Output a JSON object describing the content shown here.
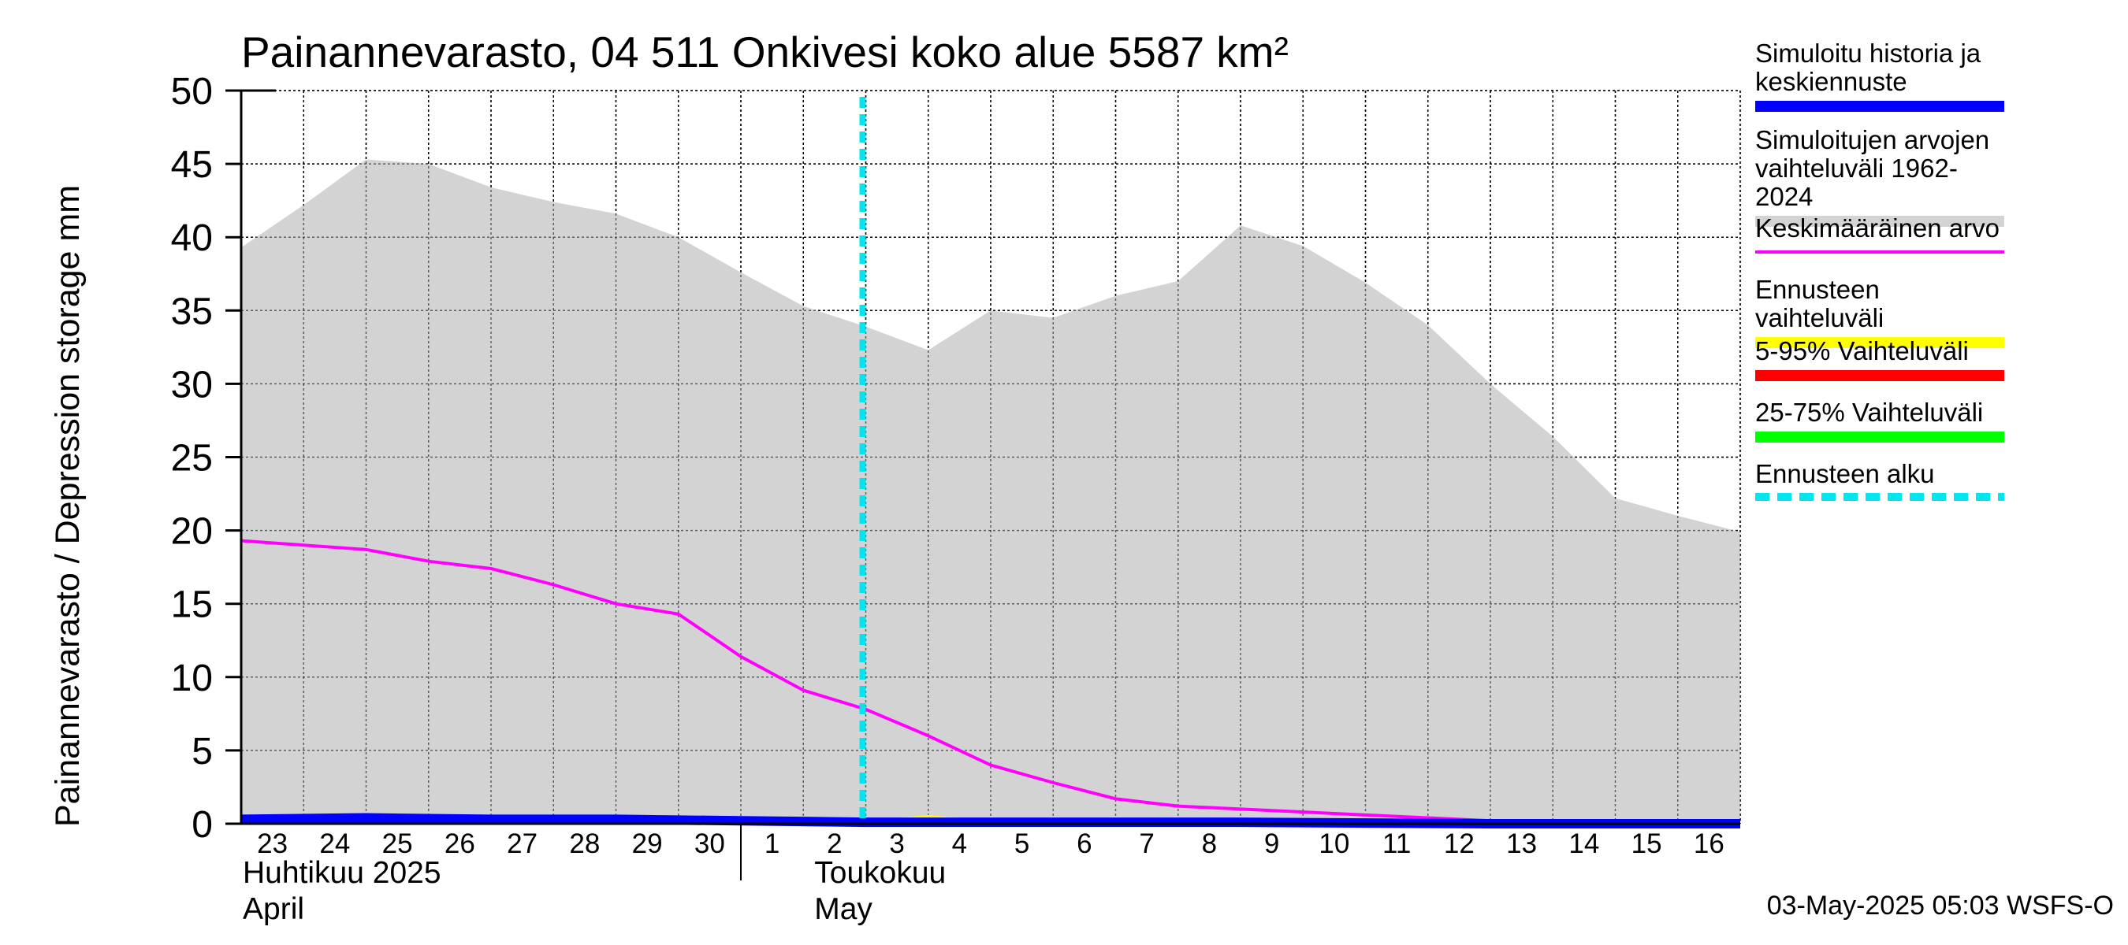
{
  "title": "Painannevarasto, 04 511 Onkivesi koko alue 5587 km²",
  "y_axis_label": "Painannevarasto / Depression storage    mm",
  "months": [
    {
      "fi": "Huhtikuu  2025",
      "en": "April"
    },
    {
      "fi": "Toukokuu",
      "en": "May"
    }
  ],
  "footer": "03-May-2025 05:03 WSFS-O",
  "legend": [
    {
      "label": "Simuloitu historia ja\nkeskiennuste",
      "color": "#0000ff",
      "style": "solid"
    },
    {
      "label": "Simuloitujen arvojen\nvaihteluväli 1962-2024",
      "color": "#d3d3d3",
      "style": "solid"
    },
    {
      "label": "Keskimääräinen arvo",
      "color": "#ff00ff",
      "style": "thin"
    },
    {
      "label": "Ennusteen vaihteluväli",
      "color": "#ffff00",
      "style": "solid"
    },
    {
      "label": "5-95% Vaihteluväli",
      "color": "#ff0000",
      "style": "solid"
    },
    {
      "label": "25-75% Vaihteluväli",
      "color": "#00ff00",
      "style": "solid"
    },
    {
      "label": "Ennusteen alku",
      "color": "#00e5ee",
      "style": "dashed"
    }
  ],
  "chart_data": {
    "type": "area",
    "ylim": [
      0,
      50
    ],
    "yticks": [
      0,
      5,
      10,
      15,
      20,
      25,
      30,
      35,
      40,
      45,
      50
    ],
    "x_start": "2025-04-23",
    "x_end": "2025-05-17",
    "xtick_labels": [
      "23",
      "24",
      "25",
      "26",
      "27",
      "28",
      "29",
      "30",
      "1",
      "2",
      "3",
      "4",
      "5",
      "6",
      "7",
      "8",
      "9",
      "10",
      "11",
      "12",
      "13",
      "14",
      "15",
      "16"
    ],
    "forecast_start": "2025-05-03",
    "range_max": {
      "x": [
        "2025-04-23",
        "2025-04-24",
        "2025-04-25",
        "2025-04-26",
        "2025-04-27",
        "2025-04-28",
        "2025-04-29",
        "2025-04-30",
        "2025-05-01",
        "2025-05-02",
        "2025-05-03",
        "2025-05-04",
        "2025-05-05",
        "2025-05-06",
        "2025-05-07",
        "2025-05-08",
        "2025-05-09",
        "2025-05-10",
        "2025-05-11",
        "2025-05-12",
        "2025-05-13",
        "2025-05-14",
        "2025-05-15",
        "2025-05-16",
        "2025-05-17"
      ],
      "y": [
        39.3,
        42.2,
        45.3,
        45.0,
        43.4,
        42.4,
        41.6,
        40.0,
        37.6,
        35.3,
        33.9,
        32.3,
        35.0,
        34.5,
        36.0,
        37.0,
        40.8,
        39.4,
        36.9,
        34.0,
        30.0,
        26.4,
        22.2,
        21.0,
        19.9
      ]
    },
    "range_min": {
      "x": [
        "2025-04-23",
        "2025-05-17"
      ],
      "y": [
        0,
        0
      ]
    },
    "series": [
      {
        "name": "Keskimääräinen arvo",
        "color": "#ff00ff",
        "x": [
          "2025-04-23",
          "2025-04-24",
          "2025-04-25",
          "2025-04-26",
          "2025-04-27",
          "2025-04-28",
          "2025-04-29",
          "2025-04-30",
          "2025-05-01",
          "2025-05-02",
          "2025-05-03",
          "2025-05-04",
          "2025-05-05",
          "2025-05-06",
          "2025-05-07",
          "2025-05-08",
          "2025-05-09",
          "2025-05-10",
          "2025-05-11",
          "2025-05-12",
          "2025-05-13",
          "2025-05-14",
          "2025-05-15",
          "2025-05-16",
          "2025-05-17"
        ],
        "y": [
          19.3,
          19.0,
          18.7,
          17.9,
          17.4,
          16.3,
          15.0,
          14.3,
          11.4,
          9.1,
          7.8,
          6.0,
          4.0,
          2.8,
          1.7,
          1.2,
          1.0,
          0.8,
          0.6,
          0.4,
          0.2,
          0.05,
          0,
          0,
          0
        ]
      },
      {
        "name": "Simuloitu historia ja keskiennuste",
        "color": "#0000ff",
        "x": [
          "2025-04-23",
          "2025-04-25",
          "2025-04-27",
          "2025-04-29",
          "2025-05-01",
          "2025-05-03",
          "2025-05-05",
          "2025-05-09",
          "2025-05-13",
          "2025-05-17"
        ],
        "y": [
          0.3,
          0.4,
          0.3,
          0.3,
          0.2,
          0.1,
          0.1,
          0.1,
          0.0,
          0.0
        ]
      },
      {
        "name": "Ennusteen vaihteluväli",
        "color": "#ffff00",
        "x": [
          "2025-05-03",
          "2025-05-03T12:00",
          "2025-05-04",
          "2025-05-04T12:00",
          "2025-05-05"
        ],
        "y": [
          0.1,
          0.4,
          0.6,
          0.4,
          0.1
        ]
      }
    ]
  }
}
